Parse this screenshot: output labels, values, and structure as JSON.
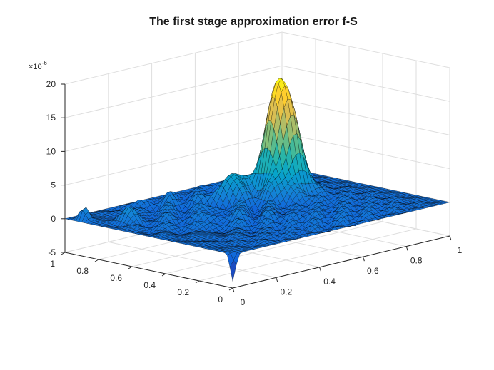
{
  "chart_data": {
    "type": "surface",
    "title": "The first stage approximation error f-S",
    "xlabel": "",
    "ylabel": "",
    "zlabel": "",
    "z_exponent_label": "×10",
    "z_exponent": "-6",
    "x_ticks": [
      "0",
      "0.2",
      "0.4",
      "0.6",
      "0.8",
      "1"
    ],
    "y_ticks": [
      "0",
      "0.2",
      "0.4",
      "0.6",
      "0.8",
      "1"
    ],
    "z_ticks": [
      "-5",
      "0",
      "5",
      "10",
      "15",
      "20"
    ],
    "xlim": [
      0,
      1
    ],
    "ylim": [
      0,
      1
    ],
    "zlim": [
      -5,
      20
    ],
    "z_scale": "1e-6",
    "grid": true,
    "colormap": "parula",
    "colors": [
      "#352a87",
      "#0f5cdd",
      "#1481d6",
      "#06a4ca",
      "#2eb7a4",
      "#87bf77",
      "#d1bb59",
      "#fec832",
      "#f9fb0e"
    ],
    "surface_shape": {
      "flat_level": 0,
      "features": [
        {
          "x": 0.72,
          "y": 0.64,
          "height": 17.5,
          "note": "main peak"
        },
        {
          "x": 0.55,
          "y": 0.72,
          "height": 5.0
        },
        {
          "x": 0.02,
          "y": 0.92,
          "height": 5.0
        },
        {
          "x": 0.1,
          "y": 0.75,
          "height": 2.0
        },
        {
          "x": 0.0,
          "y": 0.0,
          "height": -4.0
        }
      ]
    }
  }
}
